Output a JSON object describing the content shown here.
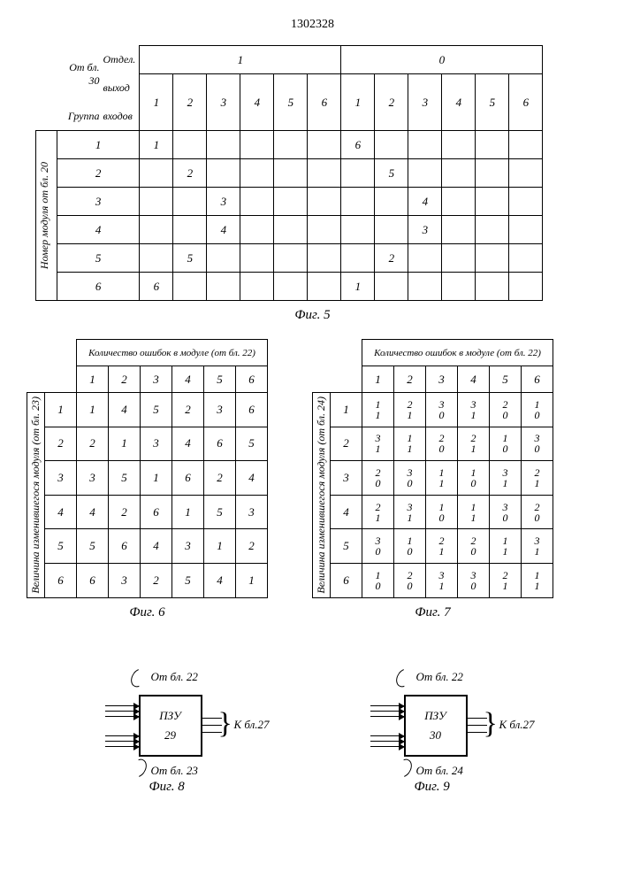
{
  "page_number": "1302328",
  "fig5": {
    "caption": "Фиг. 5",
    "row_header_label": "Номер модуля от бл. 20",
    "top_label_line1": "От бл.",
    "top_label_line2": "30",
    "top_label_line3": "Отдел.",
    "top_label_line4": "выход",
    "top_label_line5": "Группа",
    "top_label_line6": "входов",
    "groups": [
      "1",
      "0"
    ],
    "cols": [
      "1",
      "2",
      "3",
      "4",
      "5",
      "6",
      "1",
      "2",
      "3",
      "4",
      "5",
      "6"
    ],
    "rows": [
      "1",
      "2",
      "3",
      "4",
      "5",
      "6"
    ],
    "cells": {
      "1-1": "1",
      "1-7": "6",
      "2-2": "2",
      "2-8": "5",
      "3-3": "3",
      "3-9": "4",
      "4-3": "4",
      "4-9": "3",
      "5-2": "5",
      "5-8": "2",
      "6-1": "6",
      "6-7": "1"
    }
  },
  "fig6": {
    "caption": "Фиг. 6",
    "title": "Количество ошибок в модуле (от бл. 22)",
    "row_label": "Величина изменившегося модуля (от бл. 23)",
    "cols": [
      "1",
      "2",
      "3",
      "4",
      "5",
      "6"
    ],
    "rows": [
      "1",
      "2",
      "3",
      "4",
      "5",
      "6"
    ],
    "data": [
      [
        "1",
        "4",
        "5",
        "2",
        "3",
        "6"
      ],
      [
        "2",
        "1",
        "3",
        "4",
        "6",
        "5"
      ],
      [
        "3",
        "5",
        "1",
        "6",
        "2",
        "4"
      ],
      [
        "4",
        "2",
        "6",
        "1",
        "5",
        "3"
      ],
      [
        "5",
        "6",
        "4",
        "3",
        "1",
        "2"
      ],
      [
        "6",
        "3",
        "2",
        "5",
        "4",
        "1"
      ]
    ]
  },
  "fig7": {
    "caption": "Фиг. 7",
    "title": "Количество ошибок в модуле (от бл. 22)",
    "row_label": "Величина изменившегося модуля (от бл. 24)",
    "cols": [
      "1",
      "2",
      "3",
      "4",
      "5",
      "6"
    ],
    "rows": [
      "1",
      "2",
      "3",
      "4",
      "5",
      "6"
    ],
    "data": [
      [
        [
          "1",
          "1"
        ],
        [
          "2",
          "1"
        ],
        [
          "3",
          "0"
        ],
        [
          "3",
          "1"
        ],
        [
          "2",
          "0"
        ],
        [
          "1",
          "0"
        ]
      ],
      [
        [
          "3",
          "1"
        ],
        [
          "1",
          "1"
        ],
        [
          "2",
          "0"
        ],
        [
          "2",
          "1"
        ],
        [
          "1",
          "0"
        ],
        [
          "3",
          "0"
        ]
      ],
      [
        [
          "2",
          "0"
        ],
        [
          "3",
          "0"
        ],
        [
          "1",
          "1"
        ],
        [
          "1",
          "0"
        ],
        [
          "3",
          "1"
        ],
        [
          "2",
          "1"
        ]
      ],
      [
        [
          "2",
          "1"
        ],
        [
          "3",
          "1"
        ],
        [
          "1",
          "0"
        ],
        [
          "1",
          "1"
        ],
        [
          "3",
          "0"
        ],
        [
          "2",
          "0"
        ]
      ],
      [
        [
          "3",
          "0"
        ],
        [
          "1",
          "0"
        ],
        [
          "2",
          "1"
        ],
        [
          "2",
          "0"
        ],
        [
          "1",
          "1"
        ],
        [
          "3",
          "1"
        ]
      ],
      [
        [
          "1",
          "0"
        ],
        [
          "2",
          "0"
        ],
        [
          "3",
          "1"
        ],
        [
          "3",
          "0"
        ],
        [
          "2",
          "1"
        ],
        [
          "1",
          "1"
        ]
      ]
    ]
  },
  "fig8": {
    "caption": "Фиг. 8",
    "box_label": "ПЗУ",
    "box_num": "29",
    "top": "От бл. 22",
    "bot": "От бл. 23",
    "right": "К бл.27"
  },
  "fig9": {
    "caption": "Фиг. 9",
    "box_label": "ПЗУ",
    "box_num": "30",
    "top": "От бл. 22",
    "bot": "От бл. 24",
    "right": "К бл.27"
  }
}
